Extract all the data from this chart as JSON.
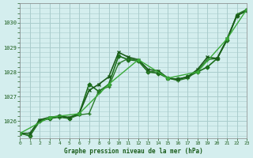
{
  "title": "Graphe pression niveau de la mer (hPa)",
  "background_color": "#d4eeee",
  "grid_color": "#aacccc",
  "line_color_dark": "#1a5c1a",
  "line_color_mid": "#2d8c2d",
  "xlim": [
    0,
    23
  ],
  "ylim": [
    1025.3,
    1030.8
  ],
  "yticks": [
    1026,
    1027,
    1028,
    1029,
    1030
  ],
  "xticks": [
    0,
    1,
    2,
    3,
    4,
    5,
    6,
    7,
    8,
    9,
    10,
    11,
    12,
    13,
    14,
    15,
    16,
    17,
    18,
    19,
    20,
    21,
    22,
    23
  ],
  "series": [
    {
      "x": [
        0,
        1,
        2,
        3,
        4,
        5,
        6,
        7,
        8,
        9,
        10,
        11,
        12,
        13,
        14,
        15,
        16,
        17,
        18,
        19,
        20,
        21,
        22,
        23
      ],
      "y": [
        1025.5,
        1025.4,
        1026.0,
        1026.1,
        1026.2,
        1026.1,
        1026.3,
        1027.5,
        1027.2,
        1027.5,
        1028.65,
        1028.5,
        1028.45,
        1028.0,
        1027.95,
        1027.75,
        1027.7,
        1027.8,
        1028.0,
        1028.2,
        1028.55,
        1029.3,
        1030.3,
        1030.5
      ],
      "color": "#1a6e1a",
      "lw": 1.2,
      "marker": "D",
      "ms": 2.5
    },
    {
      "x": [
        0,
        1,
        2,
        3,
        4,
        5,
        6,
        7,
        8,
        9,
        10,
        11,
        12,
        13,
        14,
        15,
        16,
        17,
        18,
        19,
        20,
        21,
        22,
        23
      ],
      "y": [
        1025.5,
        1025.4,
        1026.0,
        1026.1,
        1026.15,
        1026.1,
        1026.25,
        1026.3,
        1027.25,
        1027.4,
        1028.35,
        1028.55,
        1028.45,
        1028.0,
        1028.05,
        1027.75,
        1027.65,
        1027.75,
        1028.05,
        1028.5,
        1028.55,
        1029.3,
        1030.35,
        1030.55
      ],
      "color": "#2a7a2a",
      "lw": 1.0,
      "marker": "+",
      "ms": 3.5
    },
    {
      "x": [
        0,
        1,
        2,
        3,
        4,
        5,
        6,
        7,
        8,
        9,
        10,
        11,
        12,
        13,
        14,
        15,
        16,
        17,
        18,
        19,
        20,
        21,
        22,
        23
      ],
      "y": [
        1025.5,
        1025.5,
        1026.05,
        1026.15,
        1026.2,
        1026.15,
        1026.3,
        1027.25,
        1027.5,
        1027.8,
        1028.8,
        1028.6,
        1028.5,
        1028.1,
        1028.05,
        1027.75,
        1027.7,
        1027.8,
        1028.1,
        1028.6,
        1028.55,
        1029.35,
        1030.3,
        1030.5
      ],
      "color": "#1a5c1a",
      "lw": 1.2,
      "marker": "x",
      "ms": 3.0
    },
    {
      "x": [
        0,
        3,
        6,
        9,
        12,
        15,
        18,
        21,
        23
      ],
      "y": [
        1025.5,
        1026.15,
        1026.3,
        1027.5,
        1028.5,
        1027.75,
        1028.0,
        1029.35,
        1030.55
      ],
      "color": "#3aaa3a",
      "lw": 1.0,
      "marker": "D",
      "ms": 2.0
    }
  ]
}
